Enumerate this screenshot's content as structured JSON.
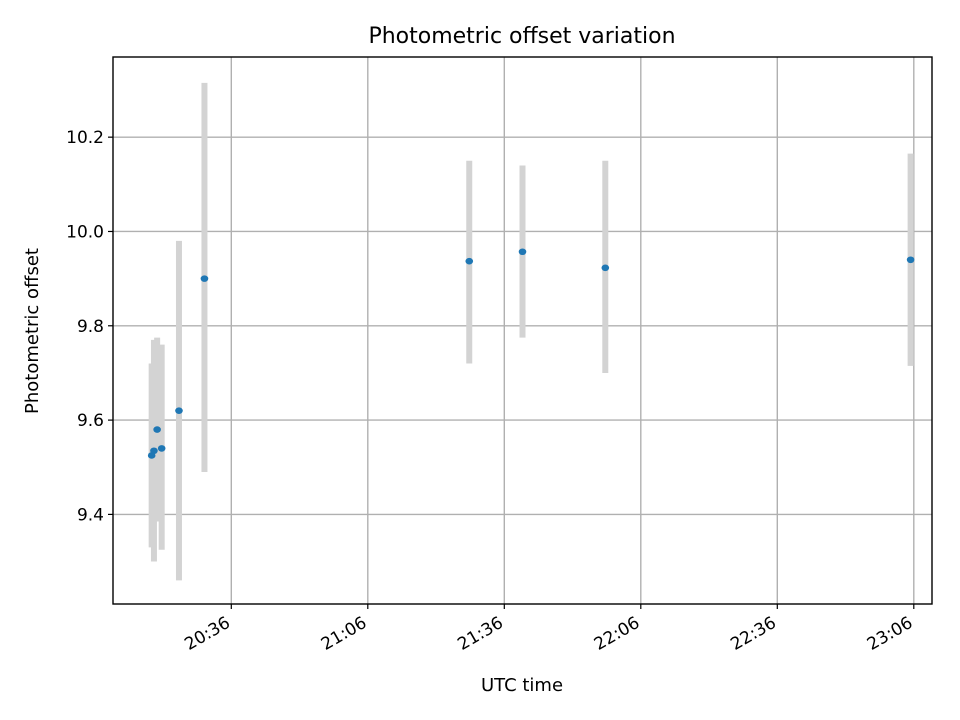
{
  "chart_data": {
    "type": "scatter",
    "title": "Photometric offset variation",
    "xlabel": "UTC time",
    "ylabel": "Photometric offset",
    "xlim": [
      "20:10",
      "23:10"
    ],
    "ylim": [
      9.21,
      10.37
    ],
    "x_ticks": [
      "20:36",
      "21:06",
      "21:36",
      "22:06",
      "22:36",
      "23:06"
    ],
    "y_ticks": [
      "9.4",
      "9.6",
      "9.8",
      "10.0",
      "10.2"
    ],
    "grid": true,
    "marker_color": "#1f77b4",
    "errorbar_color": "#d3d3d3",
    "points": [
      {
        "x": "20:18.5",
        "y": 9.525,
        "yerr_low": 9.33,
        "yerr_high": 9.72
      },
      {
        "x": "20:19.0",
        "y": 9.535,
        "yerr_low": 9.3,
        "yerr_high": 9.77
      },
      {
        "x": "20:19.7",
        "y": 9.58,
        "yerr_low": 9.385,
        "yerr_high": 9.775
      },
      {
        "x": "20:20.7",
        "y": 9.54,
        "yerr_low": 9.325,
        "yerr_high": 9.76
      },
      {
        "x": "20:24.5",
        "y": 9.62,
        "yerr_low": 9.26,
        "yerr_high": 9.98
      },
      {
        "x": "20:30.1",
        "y": 9.9,
        "yerr_low": 9.49,
        "yerr_high": 10.315
      },
      {
        "x": "21:28.3",
        "y": 9.937,
        "yerr_low": 9.72,
        "yerr_high": 10.15
      },
      {
        "x": "21:40.0",
        "y": 9.957,
        "yerr_low": 9.775,
        "yerr_high": 10.14
      },
      {
        "x": "21:58.2",
        "y": 9.923,
        "yerr_low": 9.7,
        "yerr_high": 10.15
      },
      {
        "x": "23:05.3",
        "y": 9.94,
        "yerr_low": 9.715,
        "yerr_high": 10.165
      }
    ]
  }
}
